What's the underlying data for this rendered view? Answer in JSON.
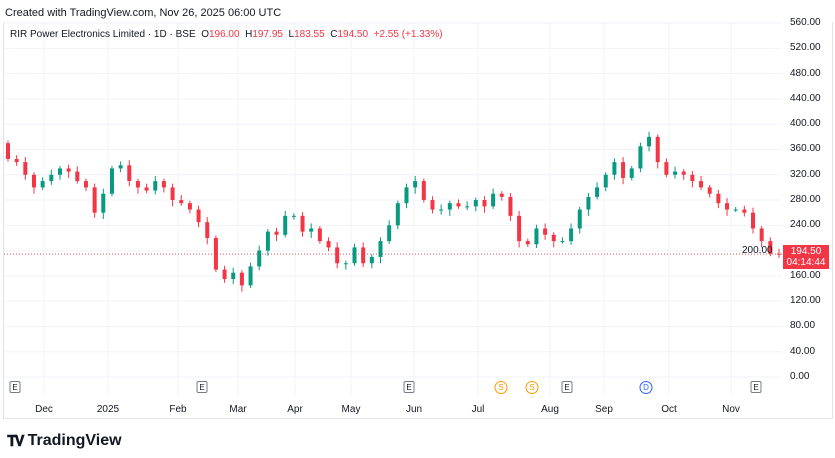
{
  "header": {
    "created": "Created with TradingView.com, Nov 26, 2025 06:00 UTC"
  },
  "legend": {
    "symbol": "RIR Power Electronics Limited · 1D · BSE",
    "o_label": "O",
    "o": "196.00",
    "h_label": "H",
    "h": "197.95",
    "l_label": "L",
    "l": "183.55",
    "c_label": "C",
    "c": "194.50",
    "change": "+2.55 (+1.33%)"
  },
  "price_label": {
    "price": "194.50",
    "countdown": "04:14:44"
  },
  "brand": {
    "logo": "TV",
    "name": "TradingView"
  },
  "colors": {
    "up": "#089981",
    "down": "#f23645",
    "grid": "#f0f3fa"
  },
  "chart_data": {
    "type": "candlestick",
    "title": "RIR Power Electronics Limited · 1D · BSE",
    "y_ticks": [
      "0.00",
      "40.00",
      "80.00",
      "120.00",
      "160.00",
      "200.00",
      "240.00",
      "280.00",
      "320.00",
      "360.00",
      "400.00",
      "440.00",
      "480.00",
      "520.00",
      "560.00"
    ],
    "ylim": [
      0,
      560
    ],
    "x_ticks": [
      "Dec",
      "2025",
      "Feb",
      "Mar",
      "Apr",
      "May",
      "Jun",
      "Jul",
      "Aug",
      "Sep",
      "Oct",
      "Nov"
    ],
    "events": [
      "E",
      "E",
      "E",
      "S",
      "S",
      "E",
      "D",
      "E"
    ],
    "first_open": 370,
    "closes": [
      345,
      340,
      320,
      300,
      310,
      320,
      330,
      325,
      310,
      300,
      260,
      290,
      330,
      335,
      310,
      300,
      295,
      310,
      300,
      280,
      275,
      265,
      245,
      220,
      170,
      155,
      165,
      145,
      175,
      200,
      230,
      225,
      255,
      255,
      230,
      235,
      215,
      205,
      180,
      180,
      205,
      180,
      190,
      215,
      240,
      275,
      300,
      310,
      280,
      265,
      265,
      275,
      270,
      270,
      280,
      270,
      290,
      285,
      255,
      215,
      210,
      235,
      225,
      215,
      215,
      235,
      265,
      285,
      300,
      320,
      340,
      315,
      330,
      365,
      380,
      340,
      320,
      325,
      320,
      310,
      300,
      290,
      275,
      265,
      265,
      260,
      235,
      215,
      195,
      194.5
    ],
    "last_price": 194.5
  }
}
